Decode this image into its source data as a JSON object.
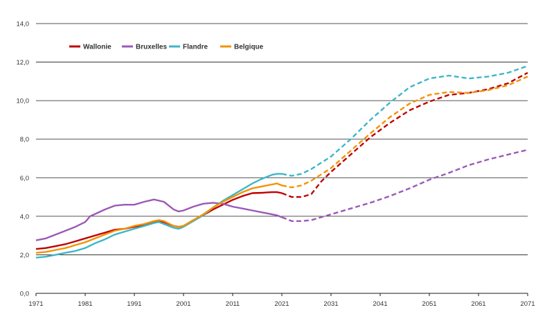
{
  "chart_data": {
    "type": "line",
    "title": "",
    "xlabel": "",
    "ylabel": "",
    "xlim": [
      1971,
      2071
    ],
    "ylim": [
      0,
      14
    ],
    "grid": true,
    "legend_position": "top-left",
    "x_ticks": [
      1971,
      1981,
      1991,
      2001,
      2011,
      2021,
      2031,
      2041,
      2051,
      2061,
      2071
    ],
    "x_tick_labels": [
      "1971",
      "1981",
      "1991",
      "2001",
      "2011",
      "2021",
      "2031",
      "2041",
      "2051",
      "2061",
      "2071"
    ],
    "y_ticks": [
      0,
      2,
      4,
      6,
      8,
      10,
      12,
      14
    ],
    "y_tick_labels": [
      "0,0",
      "2,0",
      "4,0",
      "6,0",
      "8,0",
      "10,0",
      "12,0",
      "14,0"
    ],
    "projection_start": 2021,
    "series": [
      {
        "name": "Wallonie",
        "color": "#c00000",
        "points": [
          [
            1971,
            2.3
          ],
          [
            1973,
            2.35
          ],
          [
            1975,
            2.45
          ],
          [
            1977,
            2.55
          ],
          [
            1979,
            2.7
          ],
          [
            1981,
            2.85
          ],
          [
            1983,
            3.0
          ],
          [
            1985,
            3.15
          ],
          [
            1987,
            3.3
          ],
          [
            1989,
            3.35
          ],
          [
            1991,
            3.45
          ],
          [
            1993,
            3.55
          ],
          [
            1995,
            3.7
          ],
          [
            1996,
            3.75
          ],
          [
            1997,
            3.7
          ],
          [
            1999,
            3.5
          ],
          [
            2000,
            3.45
          ],
          [
            2001,
            3.5
          ],
          [
            2003,
            3.8
          ],
          [
            2005,
            4.05
          ],
          [
            2007,
            4.35
          ],
          [
            2009,
            4.6
          ],
          [
            2011,
            4.85
          ],
          [
            2013,
            5.05
          ],
          [
            2015,
            5.2
          ],
          [
            2017,
            5.22
          ],
          [
            2019,
            5.25
          ],
          [
            2020,
            5.25
          ],
          [
            2021,
            5.2
          ],
          [
            2023,
            5.0
          ],
          [
            2025,
            5.0
          ],
          [
            2027,
            5.15
          ],
          [
            2029,
            5.8
          ],
          [
            2031,
            6.3
          ],
          [
            2035,
            7.2
          ],
          [
            2039,
            8.1
          ],
          [
            2043,
            8.85
          ],
          [
            2047,
            9.5
          ],
          [
            2051,
            9.95
          ],
          [
            2055,
            10.3
          ],
          [
            2059,
            10.4
          ],
          [
            2063,
            10.6
          ],
          [
            2067,
            10.9
          ],
          [
            2071,
            11.45
          ]
        ]
      },
      {
        "name": "Bruxelles",
        "color": "#9b59b6",
        "points": [
          [
            1971,
            2.75
          ],
          [
            1973,
            2.85
          ],
          [
            1975,
            3.05
          ],
          [
            1977,
            3.25
          ],
          [
            1979,
            3.45
          ],
          [
            1981,
            3.7
          ],
          [
            1982,
            4.0
          ],
          [
            1985,
            4.35
          ],
          [
            1987,
            4.55
          ],
          [
            1989,
            4.6
          ],
          [
            1991,
            4.6
          ],
          [
            1993,
            4.75
          ],
          [
            1995,
            4.87
          ],
          [
            1997,
            4.75
          ],
          [
            1999,
            4.35
          ],
          [
            2000,
            4.25
          ],
          [
            2001,
            4.3
          ],
          [
            2003,
            4.5
          ],
          [
            2005,
            4.65
          ],
          [
            2007,
            4.7
          ],
          [
            2009,
            4.65
          ],
          [
            2011,
            4.5
          ],
          [
            2013,
            4.4
          ],
          [
            2015,
            4.3
          ],
          [
            2017,
            4.2
          ],
          [
            2019,
            4.1
          ],
          [
            2020,
            4.05
          ],
          [
            2021,
            3.95
          ],
          [
            2023,
            3.75
          ],
          [
            2025,
            3.75
          ],
          [
            2027,
            3.8
          ],
          [
            2031,
            4.1
          ],
          [
            2035,
            4.4
          ],
          [
            2039,
            4.7
          ],
          [
            2043,
            5.05
          ],
          [
            2047,
            5.45
          ],
          [
            2051,
            5.9
          ],
          [
            2055,
            6.25
          ],
          [
            2059,
            6.65
          ],
          [
            2063,
            6.95
          ],
          [
            2067,
            7.2
          ],
          [
            2071,
            7.45
          ]
        ]
      },
      {
        "name": "Flandre",
        "color": "#3cb6c8",
        "points": [
          [
            1971,
            1.85
          ],
          [
            1973,
            1.9
          ],
          [
            1975,
            2.0
          ],
          [
            1977,
            2.1
          ],
          [
            1979,
            2.2
          ],
          [
            1981,
            2.35
          ],
          [
            1983,
            2.6
          ],
          [
            1985,
            2.8
          ],
          [
            1987,
            3.05
          ],
          [
            1989,
            3.2
          ],
          [
            1991,
            3.35
          ],
          [
            1993,
            3.5
          ],
          [
            1995,
            3.65
          ],
          [
            1996,
            3.7
          ],
          [
            1997,
            3.6
          ],
          [
            1999,
            3.4
          ],
          [
            2000,
            3.35
          ],
          [
            2001,
            3.45
          ],
          [
            2003,
            3.75
          ],
          [
            2005,
            4.05
          ],
          [
            2007,
            4.45
          ],
          [
            2009,
            4.8
          ],
          [
            2011,
            5.1
          ],
          [
            2013,
            5.4
          ],
          [
            2015,
            5.7
          ],
          [
            2017,
            5.95
          ],
          [
            2019,
            6.15
          ],
          [
            2020,
            6.2
          ],
          [
            2021,
            6.2
          ],
          [
            2023,
            6.1
          ],
          [
            2025,
            6.2
          ],
          [
            2027,
            6.45
          ],
          [
            2031,
            7.1
          ],
          [
            2035,
            8.0
          ],
          [
            2039,
            9.0
          ],
          [
            2043,
            9.9
          ],
          [
            2047,
            10.7
          ],
          [
            2051,
            11.15
          ],
          [
            2055,
            11.3
          ],
          [
            2059,
            11.15
          ],
          [
            2063,
            11.25
          ],
          [
            2067,
            11.45
          ],
          [
            2071,
            11.8
          ]
        ]
      },
      {
        "name": "Belgique",
        "color": "#f39200",
        "points": [
          [
            1971,
            2.1
          ],
          [
            1973,
            2.15
          ],
          [
            1975,
            2.25
          ],
          [
            1977,
            2.35
          ],
          [
            1979,
            2.5
          ],
          [
            1981,
            2.65
          ],
          [
            1983,
            2.85
          ],
          [
            1985,
            3.05
          ],
          [
            1987,
            3.25
          ],
          [
            1989,
            3.35
          ],
          [
            1991,
            3.5
          ],
          [
            1993,
            3.6
          ],
          [
            1995,
            3.75
          ],
          [
            1996,
            3.8
          ],
          [
            1997,
            3.75
          ],
          [
            1999,
            3.5
          ],
          [
            2000,
            3.45
          ],
          [
            2001,
            3.5
          ],
          [
            2003,
            3.8
          ],
          [
            2005,
            4.1
          ],
          [
            2007,
            4.45
          ],
          [
            2009,
            4.75
          ],
          [
            2011,
            5.0
          ],
          [
            2013,
            5.25
          ],
          [
            2015,
            5.45
          ],
          [
            2017,
            5.55
          ],
          [
            2019,
            5.65
          ],
          [
            2020,
            5.7
          ],
          [
            2021,
            5.6
          ],
          [
            2023,
            5.5
          ],
          [
            2025,
            5.6
          ],
          [
            2027,
            5.85
          ],
          [
            2031,
            6.5
          ],
          [
            2035,
            7.4
          ],
          [
            2039,
            8.3
          ],
          [
            2043,
            9.15
          ],
          [
            2047,
            9.85
          ],
          [
            2051,
            10.3
          ],
          [
            2055,
            10.45
          ],
          [
            2059,
            10.4
          ],
          [
            2063,
            10.55
          ],
          [
            2067,
            10.8
          ],
          [
            2071,
            11.25
          ]
        ]
      }
    ]
  }
}
